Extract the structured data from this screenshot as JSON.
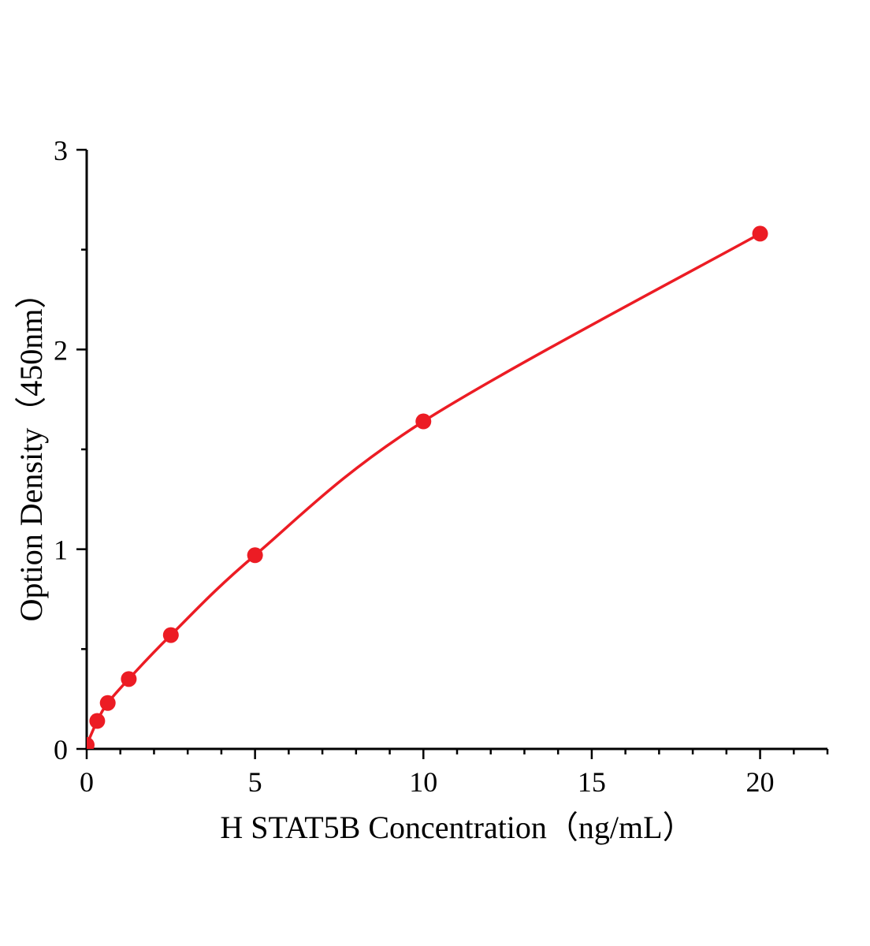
{
  "chart_data": {
    "type": "scatter",
    "title": "",
    "xlabel": "H STAT5B Concentration（ng/mL）",
    "ylabel": "Option Density（450nm）",
    "x": [
      0,
      0.313,
      0.625,
      1.25,
      2.5,
      5,
      10,
      20
    ],
    "y": [
      0.02,
      0.14,
      0.23,
      0.35,
      0.57,
      0.97,
      1.64,
      2.58
    ],
    "xlim": [
      0,
      22
    ],
    "ylim": [
      0,
      3
    ],
    "xticks": [
      0,
      5,
      10,
      15,
      20
    ],
    "yticks": [
      0,
      1,
      2,
      3
    ],
    "x_minor_step": 1,
    "y_minor_step": 0.5,
    "line_color": "#ec1c24",
    "marker_color": "#ec1c24",
    "axis_color": "#000000",
    "background": "#ffffff",
    "grid": false,
    "legend": null
  }
}
